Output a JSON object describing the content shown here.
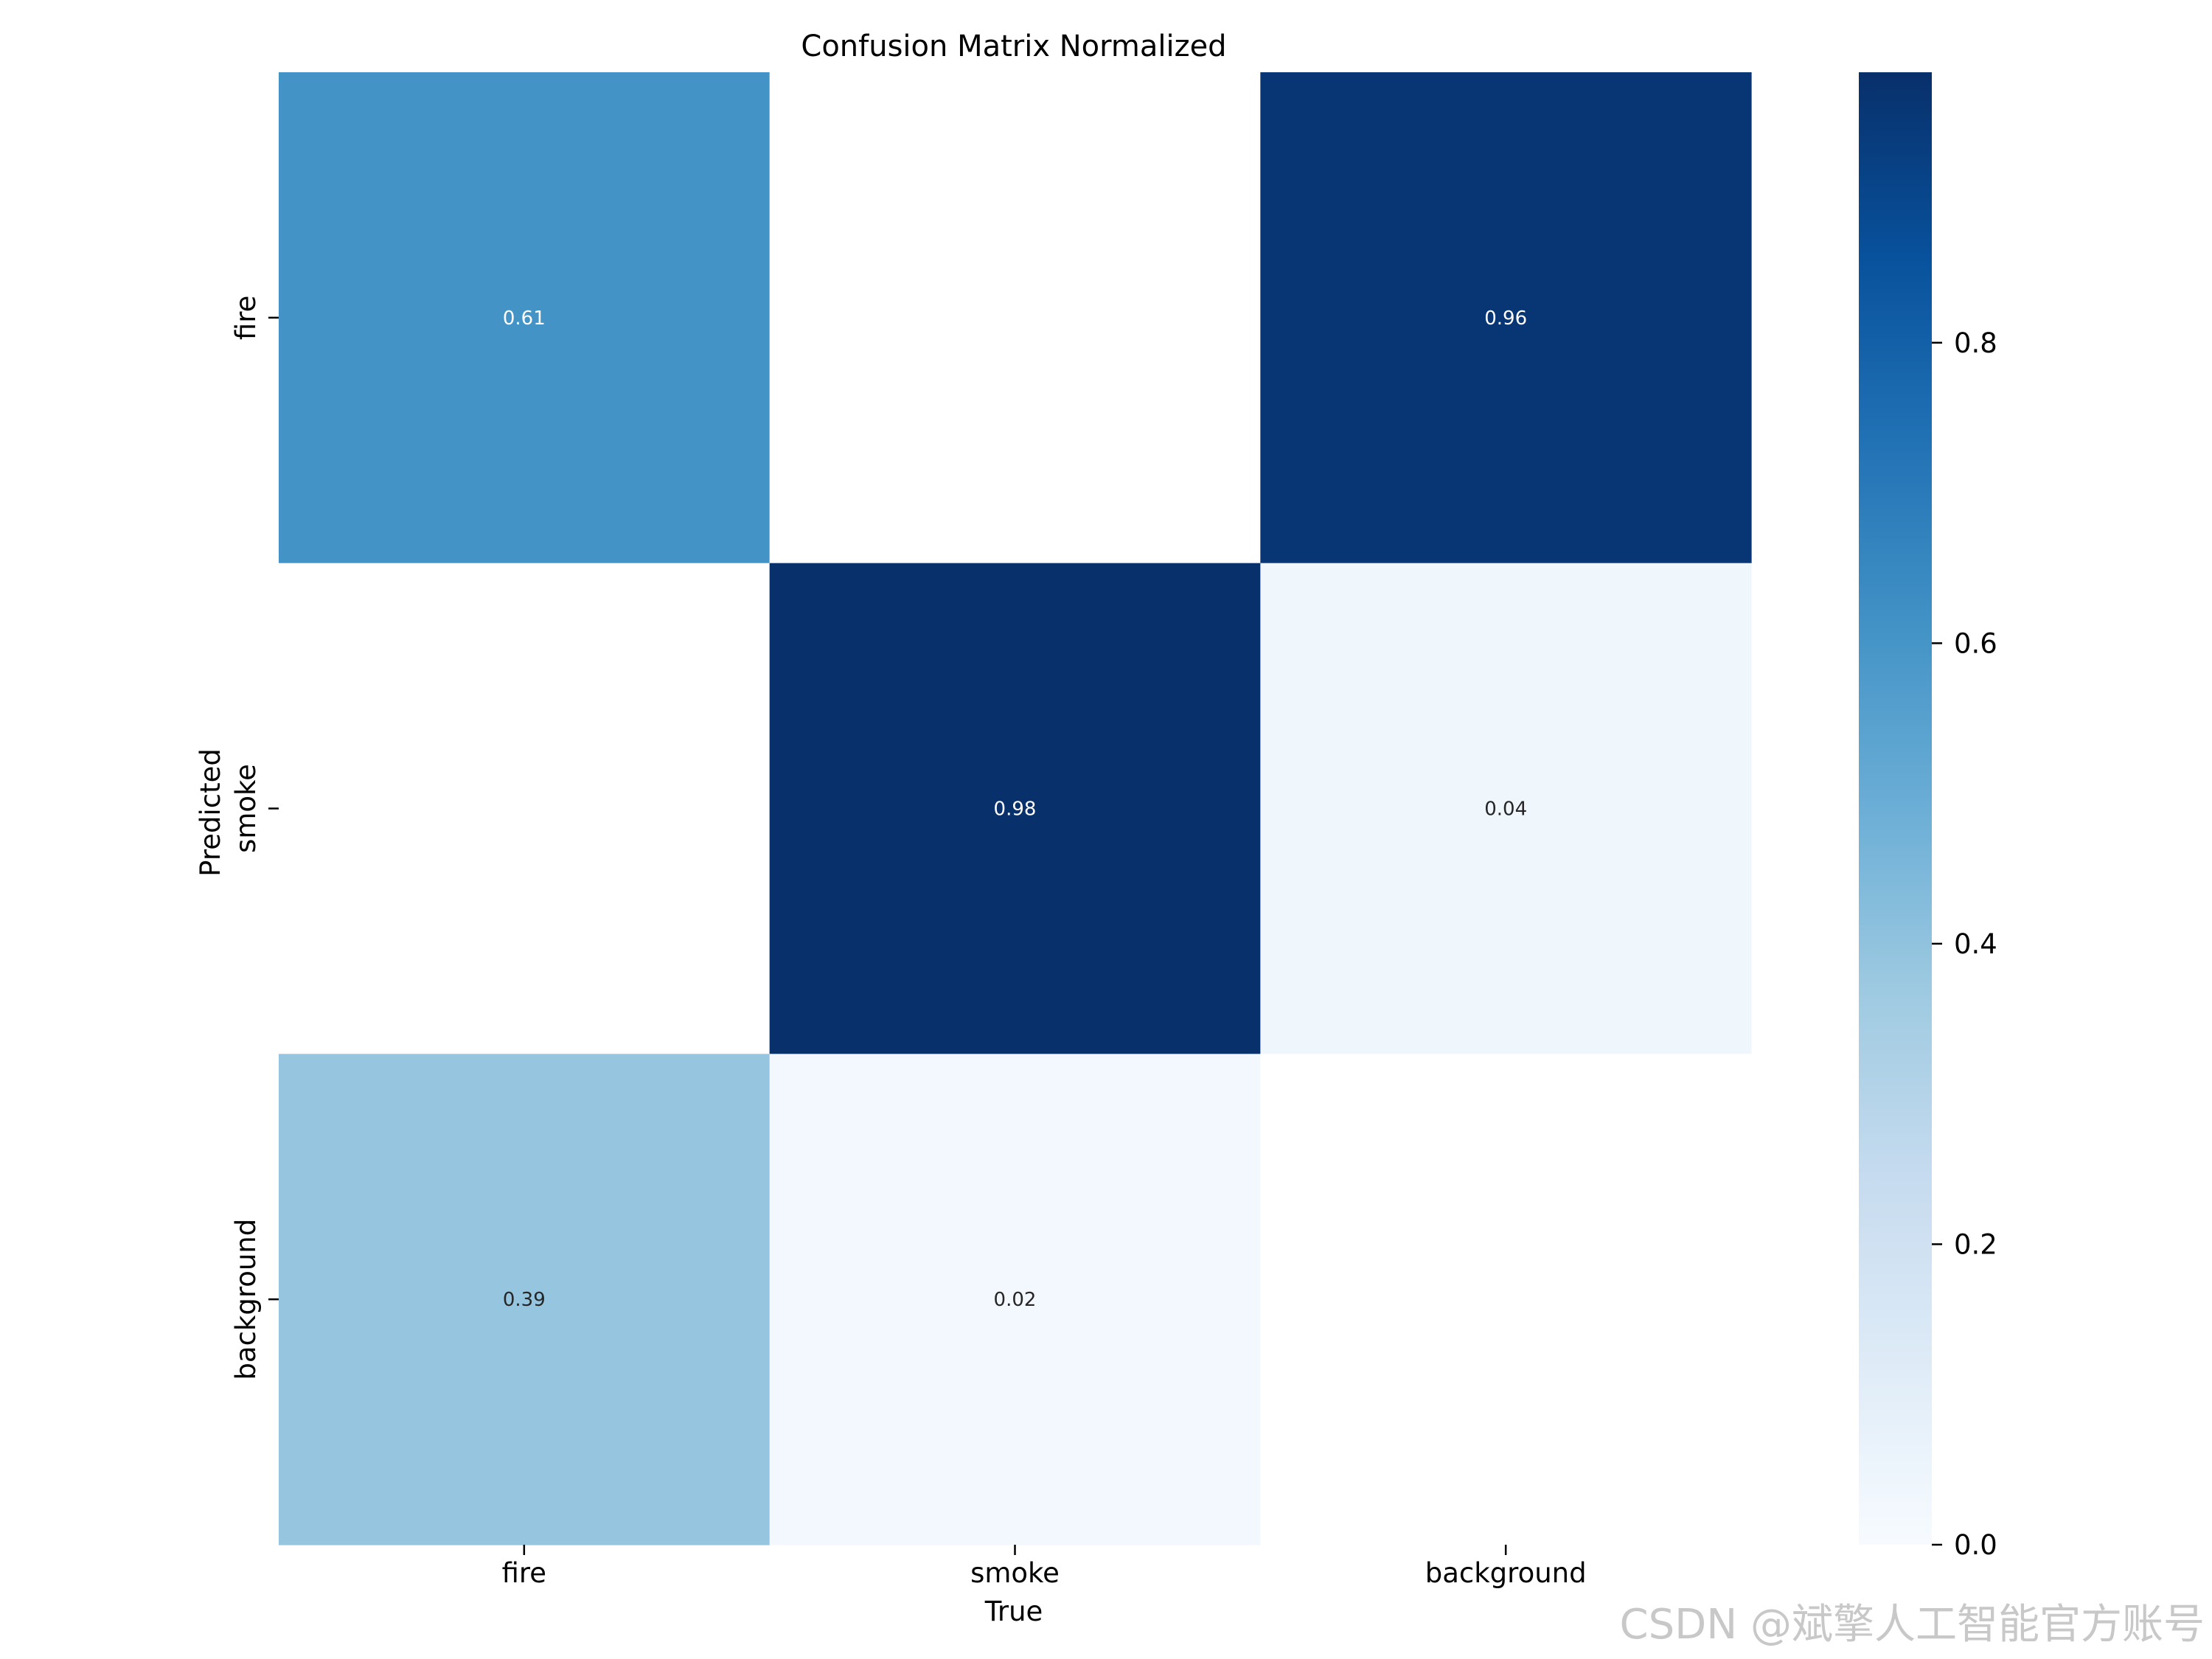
{
  "chart_data": {
    "type": "heatmap",
    "title": "Confusion Matrix Normalized",
    "xlabel": "True",
    "ylabel": "Predicted",
    "x_categories": [
      "fire",
      "smoke",
      "background"
    ],
    "y_categories": [
      "fire",
      "smoke",
      "background"
    ],
    "values": [
      [
        0.61,
        null,
        0.96
      ],
      [
        null,
        0.98,
        0.04
      ],
      [
        0.39,
        0.02,
        null
      ]
    ],
    "value_labels": [
      [
        "0.61",
        "",
        "0.96"
      ],
      [
        "",
        "0.98",
        "0.04"
      ],
      [
        "0.39",
        "0.02",
        ""
      ]
    ],
    "colormap": "Blues",
    "vmin": 0.0,
    "vmax": 0.98,
    "colorbar_ticks": [
      0.0,
      0.2,
      0.4,
      0.6,
      0.8
    ],
    "colorbar_tick_labels": [
      "0.0",
      "0.2",
      "0.4",
      "0.6",
      "0.8"
    ],
    "grid": false
  },
  "watermark": "CSDN @斌擎人工智能官方账号"
}
